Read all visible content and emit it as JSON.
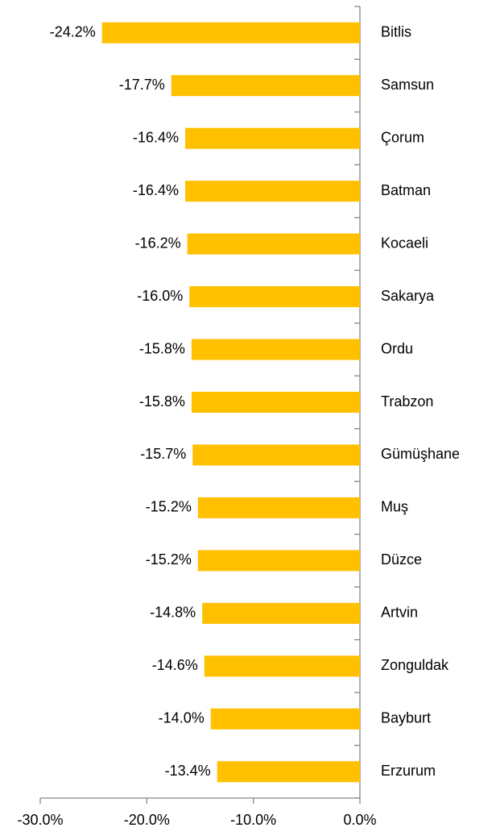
{
  "chart_data": {
    "type": "bar",
    "orientation": "horizontal",
    "categories": [
      "Bitlis",
      "Samsun",
      "Çorum",
      "Batman",
      "Kocaeli",
      "Sakarya",
      "Ordu",
      "Trabzon",
      "Gümüşhane",
      "Muş",
      "Düzce",
      "Artvin",
      "Zonguldak",
      "Bayburt",
      "Erzurum"
    ],
    "values": [
      -24.2,
      -17.7,
      -16.4,
      -16.4,
      -16.2,
      -16.0,
      -15.8,
      -15.8,
      -15.7,
      -15.2,
      -15.2,
      -14.8,
      -14.6,
      -14.0,
      -13.4
    ],
    "value_labels": [
      "-24.2%",
      "-17.7%",
      "-16.4%",
      "-16.4%",
      "-16.2%",
      "-16.0%",
      "-15.8%",
      "-15.8%",
      "-15.7%",
      "-15.2%",
      "-15.2%",
      "-14.8%",
      "-14.6%",
      "-14.0%",
      "-13.4%"
    ],
    "color": "#FFC000",
    "xlim": [
      -30,
      0
    ],
    "xticks": [
      {
        "value": -30,
        "label": "-30.0%"
      },
      {
        "value": -20,
        "label": "-20.0%"
      },
      {
        "value": -10,
        "label": "-10.0%"
      },
      {
        "value": 0,
        "label": "0.0%"
      }
    ]
  }
}
